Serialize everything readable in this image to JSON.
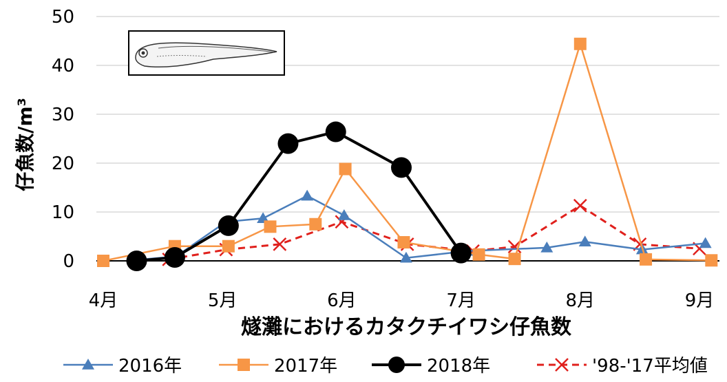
{
  "chart_data": {
    "type": "line",
    "ylabel": "仔魚数/m³",
    "xlabel": "燧灘におけるカタクチイワシ仔魚数",
    "ylim": [
      0,
      50
    ],
    "yticks": [
      "0",
      "10",
      "20",
      "30",
      "40",
      "50"
    ],
    "xticks": [
      "4月",
      "5月",
      "6月",
      "7月",
      "8月",
      "9月"
    ],
    "xlim": [
      4,
      9.1
    ],
    "grid": "horizontal",
    "legend_position": "bottom",
    "series": [
      {
        "name": "2016年",
        "color": "#4a7ebb",
        "marker": "triangle",
        "x": [
          4.28,
          4.61,
          5.03,
          5.34,
          5.71,
          6.02,
          6.54,
          7.05,
          7.72,
          8.04,
          8.52,
          9.05
        ],
        "y": [
          0.2,
          0.9,
          8.0,
          8.7,
          13.3,
          9.3,
          0.6,
          2.0,
          2.7,
          3.9,
          2.3,
          3.6
        ]
      },
      {
        "name": "2017年",
        "color": "#f79646",
        "marker": "square",
        "x": [
          4.0,
          4.6,
          5.05,
          5.4,
          5.78,
          6.03,
          6.52,
          7.15,
          7.45,
          8.0,
          8.55,
          9.1
        ],
        "y": [
          0.0,
          3.0,
          3.0,
          7.0,
          7.5,
          18.8,
          3.8,
          1.3,
          0.4,
          44.4,
          0.3,
          0.1
        ]
      },
      {
        "name": "2018年",
        "color": "#000000",
        "marker": "circle",
        "x": [
          4.28,
          4.6,
          5.05,
          5.55,
          5.95,
          6.5,
          7.0
        ],
        "y": [
          0.0,
          0.7,
          7.2,
          24.0,
          26.4,
          19.1,
          1.6
        ]
      },
      {
        "name": "'98-'17平均値",
        "color": "#e0201c",
        "marker": "x",
        "dashed": true,
        "x": [
          4.55,
          5.03,
          5.48,
          6.0,
          6.55,
          7.1,
          7.45,
          8.0,
          8.5,
          9.0
        ],
        "y": [
          0.3,
          2.3,
          3.4,
          8.0,
          3.4,
          2.0,
          2.9,
          11.3,
          3.4,
          2.5
        ]
      }
    ]
  }
}
